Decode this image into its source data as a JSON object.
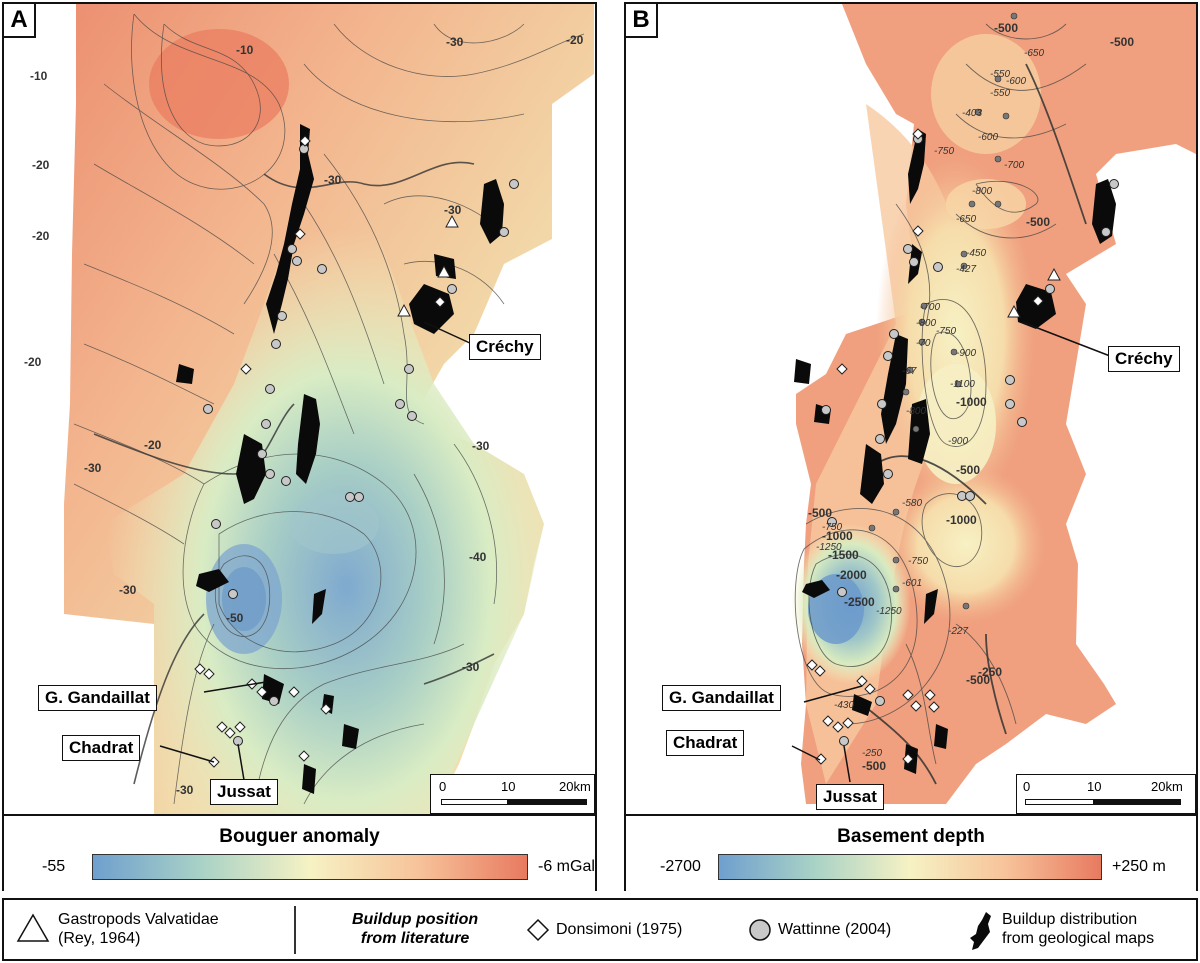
{
  "panel_a": {
    "letter": "A",
    "legend_title": "Bouguer anomaly",
    "scale_min": "-55",
    "scale_max": "-6 mGal",
    "contour_labels": [
      "-10",
      "-10",
      "-30",
      "-20",
      "-20",
      "-20",
      "-30",
      "-20",
      "-20",
      "-30",
      "-30",
      "-30",
      "-40",
      "-50",
      "-30",
      "-30",
      "-30"
    ],
    "scalebar": {
      "ticks": [
        "0",
        "10",
        "20km"
      ]
    }
  },
  "panel_b": {
    "letter": "B",
    "legend_title": "Basement depth",
    "scale_min": "-2700",
    "scale_max": "+250 m",
    "contour_labels_bold": [
      "-500",
      "-500",
      "-500",
      "-1000",
      "-500",
      "-1000",
      "-500",
      "-1000",
      "-1500",
      "-2000",
      "-2500",
      "-500",
      "-500",
      "-250"
    ],
    "contour_labels_italic": [
      "-650",
      "-600",
      "-550",
      "-550",
      "-403",
      "-600",
      "-750",
      "-700",
      "-800",
      "-650",
      "-450",
      "-427",
      "-700",
      "-800",
      "-70",
      "-750",
      "-900",
      "-67",
      "-1100",
      "-800",
      "-900",
      "-580",
      "-750",
      "-1250",
      "-750",
      "-601",
      "-1250",
      "-227",
      "-430",
      "-250"
    ],
    "scalebar": {
      "ticks": [
        "0",
        "10",
        "20km"
      ]
    }
  },
  "places": {
    "crechy": "Créchy",
    "gandaillat": "G. Gandaillat",
    "chadrat": "Chadrat",
    "jussat": "Jussat"
  },
  "legend": {
    "gastropods": "Gastropods Valvatidae\n(Rey, 1964)",
    "buildup_position": "Buildup position\nfrom literature",
    "donsimoni": "Donsimoni (1975)",
    "wattinne": "Wattinne (2004)",
    "buildup_distribution": "Buildup distribution\nfrom geological maps"
  },
  "colors": {
    "low": "#6f9fce",
    "mid_low": "#b7dbc2",
    "mid": "#f6f2c4",
    "mid_high": "#f7c39a",
    "high": "#e87a60",
    "marker_gray": "#c8c8c8",
    "buildup": "#0a0a0a"
  }
}
